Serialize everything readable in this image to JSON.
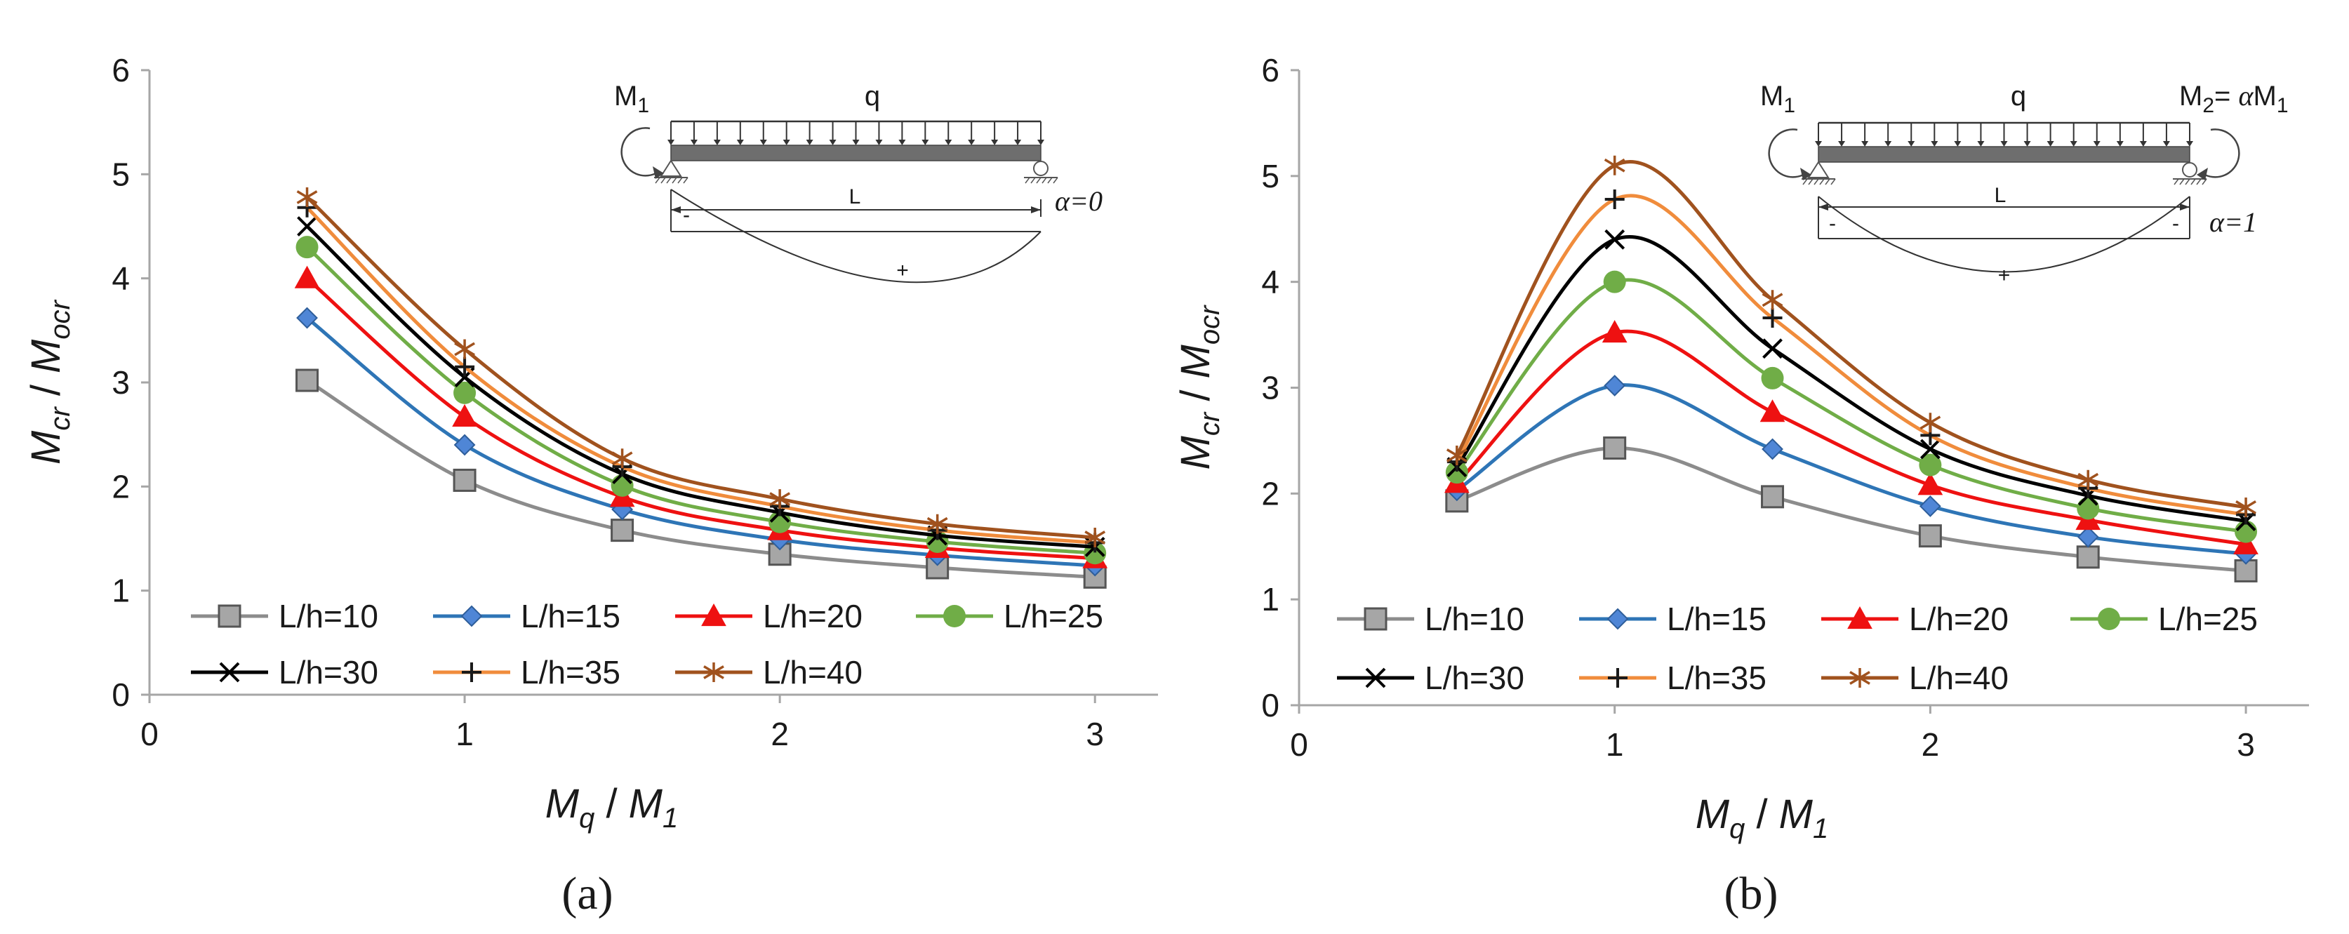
{
  "colors": {
    "L/h=10": "#8c8c8c",
    "L/h=15": "#2e75b6",
    "L/h=20": "#ee1111",
    "L/h=25": "#70ad47",
    "L/h=30": "#000000",
    "L/h=35": "#f08c3c",
    "L/h=40": "#a0521e",
    "marker_fill_10": "#a6a6a6",
    "marker_fill_15": "#4f86d6"
  },
  "chart_data": [
    {
      "type": "line",
      "panel_label": "(a)",
      "title": "",
      "xlabel_main": "M",
      "xlabel_sub1": "q",
      "xlabel_sep": " / ",
      "xlabel_main2": "M",
      "xlabel_sub2": "1",
      "ylabel_main": "M",
      "ylabel_sub1": "cr",
      "ylabel_sep": " / ",
      "ylabel_main2": "M",
      "ylabel_sub2": "ocr",
      "xlim": [
        0,
        3.2
      ],
      "ylim": [
        0,
        6
      ],
      "xticks": [
        0,
        1,
        2,
        3
      ],
      "yticks": [
        0,
        1,
        2,
        3,
        4,
        5,
        6
      ],
      "x": [
        0.5,
        1,
        1.5,
        2,
        2.5,
        3
      ],
      "series": [
        {
          "name": "L/h=10",
          "marker": "square",
          "values": [
            3.02,
            2.06,
            1.58,
            1.35,
            1.22,
            1.13
          ]
        },
        {
          "name": "L/h=15",
          "marker": "diamond",
          "values": [
            3.62,
            2.4,
            1.78,
            1.49,
            1.34,
            1.24
          ]
        },
        {
          "name": "L/h=20",
          "marker": "triangle",
          "values": [
            4.0,
            2.67,
            1.9,
            1.58,
            1.41,
            1.31
          ]
        },
        {
          "name": "L/h=25",
          "marker": "circle",
          "values": [
            4.3,
            2.9,
            2.01,
            1.66,
            1.47,
            1.36
          ]
        },
        {
          "name": "L/h=30",
          "marker": "x",
          "values": [
            4.5,
            3.05,
            2.12,
            1.75,
            1.53,
            1.42
          ]
        },
        {
          "name": "L/h=35",
          "marker": "plus",
          "values": [
            4.68,
            3.15,
            2.19,
            1.81,
            1.58,
            1.46
          ]
        },
        {
          "name": "L/h=40",
          "marker": "star",
          "values": [
            4.78,
            3.32,
            2.27,
            1.88,
            1.64,
            1.51
          ]
        }
      ],
      "legend": "bottom-left",
      "inset": {
        "M1": "M",
        "M1_sub": "1",
        "q": "q",
        "L": "L",
        "minus": "-",
        "plus": "+",
        "alpha_label": "α=0"
      }
    },
    {
      "type": "line",
      "panel_label": "(b)",
      "title": "",
      "xlabel_main": "M",
      "xlabel_sub1": "q",
      "xlabel_sep": " / ",
      "xlabel_main2": "M",
      "xlabel_sub2": "1",
      "ylabel_main": "M",
      "ylabel_sub1": "cr",
      "ylabel_sep": " / ",
      "ylabel_main2": "M",
      "ylabel_sub2": "ocr",
      "xlim": [
        0,
        3.2
      ],
      "ylim": [
        0,
        6
      ],
      "xticks": [
        0,
        1,
        2,
        3
      ],
      "yticks": [
        0,
        1,
        2,
        3,
        4,
        5,
        6
      ],
      "x": [
        0.5,
        1,
        1.5,
        2,
        2.5,
        3
      ],
      "series": [
        {
          "name": "L/h=10",
          "marker": "square",
          "values": [
            1.93,
            2.43,
            1.97,
            1.6,
            1.4,
            1.27
          ]
        },
        {
          "name": "L/h=15",
          "marker": "diamond",
          "values": [
            2.03,
            3.02,
            2.42,
            1.88,
            1.59,
            1.43
          ]
        },
        {
          "name": "L/h=20",
          "marker": "triangle",
          "values": [
            2.1,
            3.52,
            2.77,
            2.08,
            1.75,
            1.52
          ]
        },
        {
          "name": "L/h=25",
          "marker": "circle",
          "values": [
            2.2,
            4.0,
            3.09,
            2.27,
            1.86,
            1.64
          ]
        },
        {
          "name": "L/h=30",
          "marker": "x",
          "values": [
            2.25,
            4.4,
            3.37,
            2.42,
            1.98,
            1.74
          ]
        },
        {
          "name": "L/h=35",
          "marker": "plus",
          "values": [
            2.3,
            4.78,
            3.66,
            2.55,
            2.05,
            1.8
          ]
        },
        {
          "name": "L/h=40",
          "marker": "star",
          "values": [
            2.36,
            5.1,
            3.83,
            2.67,
            2.13,
            1.87
          ]
        }
      ],
      "legend": "bottom-left",
      "inset": {
        "M1": "M",
        "M1_sub": "1",
        "q": "q",
        "L": "L",
        "M2_label": "M",
        "M2_sub": "2",
        "M2_eq": "= ",
        "M2_alpha": "α",
        "M2_tail": "M",
        "M2_tail_sub": "1",
        "minus": "-",
        "plus": "+",
        "alpha_label": "α=1"
      }
    }
  ]
}
